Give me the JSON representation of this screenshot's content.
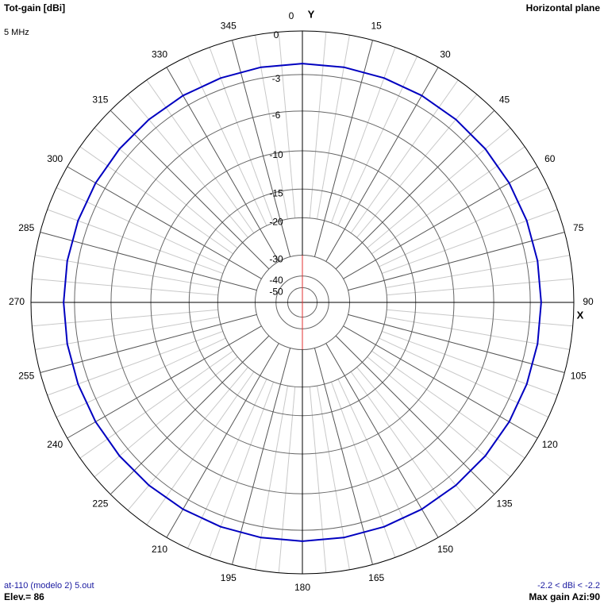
{
  "chart_data": {
    "type": "polar",
    "title": "Tot-gain [dBi]",
    "subtitle": "5 MHz",
    "plane": "Horizontal plane",
    "y_axis_label": "Y",
    "x_axis_label": "X",
    "file": "at-110 (modelo 2) 5.out",
    "elevation": "Elev.= 86",
    "gain_range": "-2.2 < dBi < -2.2",
    "max_gain": "Max gain Azi:90",
    "thetaticks": [
      0,
      15,
      30,
      45,
      60,
      75,
      90,
      105,
      120,
      135,
      150,
      165,
      180,
      195,
      210,
      225,
      240,
      255,
      270,
      285,
      300,
      315,
      330,
      345
    ],
    "rticks": [
      0,
      -3,
      -6,
      -10,
      -15,
      -20,
      -30,
      -40,
      -50
    ],
    "series": [
      {
        "color": "#0000c0",
        "theta": [
          0,
          10,
          20,
          30,
          40,
          50,
          60,
          70,
          80,
          90,
          100,
          110,
          120,
          130,
          140,
          150,
          160,
          170,
          180,
          190,
          200,
          210,
          220,
          230,
          240,
          250,
          260,
          270,
          280,
          290,
          300,
          310,
          320,
          330,
          340,
          350
        ],
        "values": [
          -2.2,
          -2.2,
          -2.2,
          -2.2,
          -2.2,
          -2.2,
          -2.2,
          -2.2,
          -2.2,
          -2.2,
          -2.2,
          -2.2,
          -2.2,
          -2.2,
          -2.2,
          -2.2,
          -2.2,
          -2.2,
          -2.2,
          -2.2,
          -2.2,
          -2.2,
          -2.2,
          -2.2,
          -2.2,
          -2.2,
          -2.2,
          -2.2,
          -2.2,
          -2.2,
          -2.2,
          -2.2,
          -2.2,
          -2.2,
          -2.2,
          -2.2
        ]
      }
    ]
  }
}
